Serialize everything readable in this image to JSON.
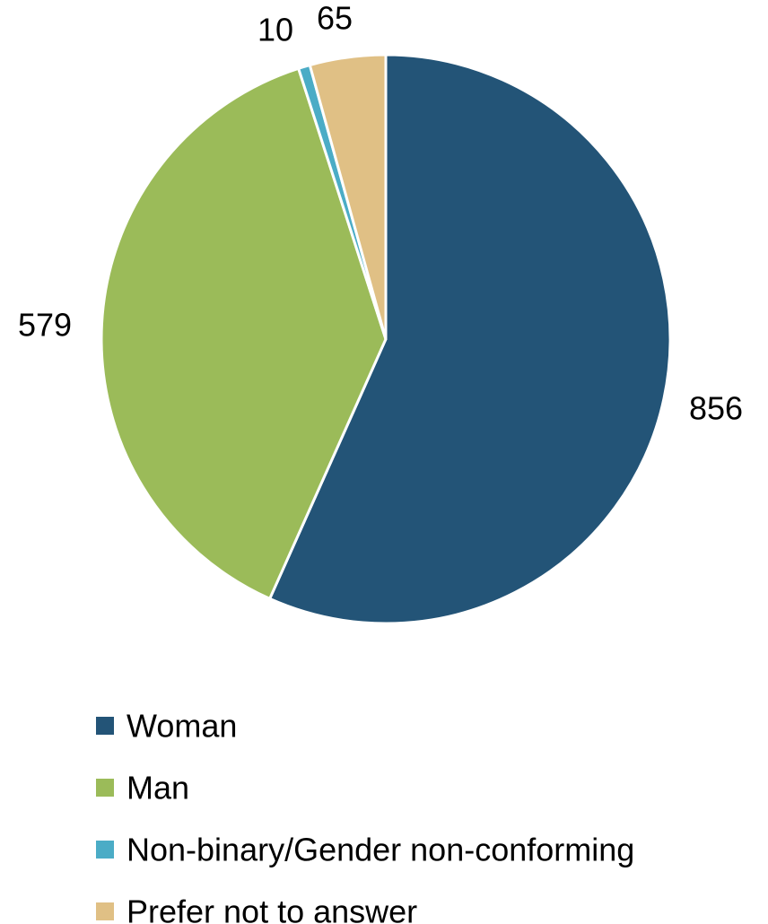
{
  "chart_data": {
    "type": "pie",
    "title": "",
    "categories": [
      "Woman",
      "Man",
      "Non-binary/Gender non-conforming",
      "Prefer not to answer"
    ],
    "values": [
      856,
      579,
      10,
      65
    ],
    "colors": [
      "#235477",
      "#9bbb59",
      "#4bacc6",
      "#e0c085"
    ],
    "start_angle_deg": 0,
    "direction": "clockwise",
    "legend_position": "bottom",
    "data_labels": [
      "856",
      "579",
      "10",
      "65"
    ]
  }
}
